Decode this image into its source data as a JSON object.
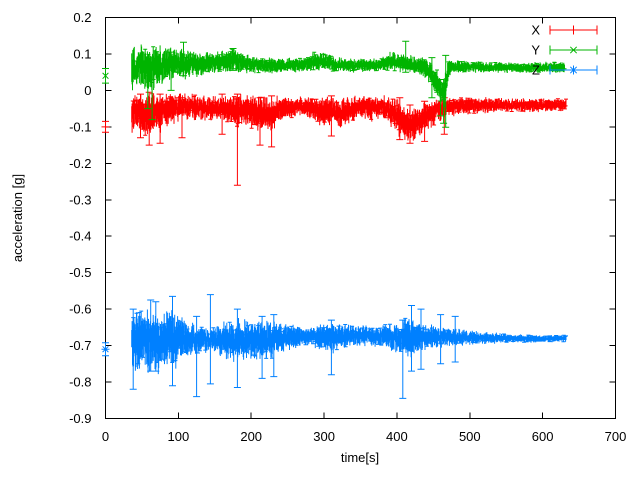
{
  "chart_data": {
    "type": "line",
    "subtype": "errorbars-noisy-traces",
    "title": "",
    "xlabel": "time[s]",
    "ylabel": "acceleration [g]",
    "xlim": [
      0,
      700
    ],
    "ylim": [
      -0.9,
      0.2
    ],
    "x_tick_labels": [
      "0",
      "100",
      "200",
      "300",
      "400",
      "500",
      "600",
      "700"
    ],
    "y_tick_labels": [
      "0.2",
      "0.1",
      "0",
      "-0.1",
      "-0.2",
      "-0.3",
      "-0.4",
      "-0.5",
      "-0.6",
      "-0.7",
      "-0.8",
      "-0.9"
    ],
    "grid": false,
    "legend_position": "top-right-inside",
    "axis_color": "#000000",
    "text_color": "#000000",
    "background_color": "#ffffff",
    "series": [
      {
        "name": "X",
        "color": "#ff0000",
        "marker": "plus",
        "t_range": [
          36,
          632
        ],
        "start_point": {
          "t": 0,
          "value": -0.1,
          "err": 0.015
        },
        "band_keypoints": [
          [
            36,
            -0.065,
            0.045
          ],
          [
            45,
            -0.055,
            0.045
          ],
          [
            60,
            -0.07,
            0.05
          ],
          [
            75,
            -0.06,
            0.045
          ],
          [
            90,
            -0.05,
            0.035
          ],
          [
            110,
            -0.045,
            0.03
          ],
          [
            140,
            -0.05,
            0.028
          ],
          [
            170,
            -0.05,
            0.03
          ],
          [
            181,
            -0.055,
            0.04
          ],
          [
            195,
            -0.055,
            0.035
          ],
          [
            210,
            -0.065,
            0.04
          ],
          [
            228,
            -0.065,
            0.04
          ],
          [
            240,
            -0.05,
            0.028
          ],
          [
            265,
            -0.042,
            0.02
          ],
          [
            285,
            -0.05,
            0.025
          ],
          [
            300,
            -0.06,
            0.035
          ],
          [
            312,
            -0.05,
            0.03
          ],
          [
            322,
            -0.065,
            0.035
          ],
          [
            335,
            -0.055,
            0.03
          ],
          [
            350,
            -0.045,
            0.025
          ],
          [
            365,
            -0.05,
            0.028
          ],
          [
            380,
            -0.045,
            0.025
          ],
          [
            395,
            -0.06,
            0.035
          ],
          [
            405,
            -0.08,
            0.04
          ],
          [
            418,
            -0.1,
            0.038
          ],
          [
            428,
            -0.085,
            0.035
          ],
          [
            438,
            -0.07,
            0.035
          ],
          [
            450,
            -0.06,
            0.03
          ],
          [
            462,
            -0.05,
            0.025
          ],
          [
            475,
            -0.045,
            0.02
          ],
          [
            500,
            -0.042,
            0.018
          ],
          [
            550,
            -0.04,
            0.016
          ],
          [
            600,
            -0.04,
            0.015
          ],
          [
            632,
            -0.04,
            0.014
          ]
        ],
        "error_spikes": [
          [
            48,
            -0.13,
            -0.01
          ],
          [
            60,
            -0.15,
            -0.005
          ],
          [
            75,
            -0.145,
            -0.01
          ],
          [
            105,
            -0.13,
            -0.02
          ],
          [
            160,
            -0.12,
            -0.01
          ],
          [
            181,
            -0.26,
            -0.01
          ],
          [
            212,
            -0.15,
            -0.02
          ],
          [
            228,
            -0.155,
            -0.015
          ],
          [
            310,
            -0.125,
            -0.015
          ],
          [
            404,
            -0.135,
            -0.02
          ],
          [
            418,
            -0.145,
            -0.04
          ],
          [
            438,
            -0.14,
            -0.03
          ],
          [
            465,
            -0.12,
            -0.02
          ]
        ]
      },
      {
        "name": "Y",
        "color": "#00b400",
        "marker": "cross",
        "t_range": [
          36,
          630
        ],
        "start_point": {
          "t": 0,
          "value": 0.04,
          "err": 0.02
        },
        "band_keypoints": [
          [
            36,
            0.06,
            0.05
          ],
          [
            45,
            0.065,
            0.05
          ],
          [
            55,
            0.06,
            0.055
          ],
          [
            65,
            0.06,
            0.05
          ],
          [
            80,
            0.07,
            0.04
          ],
          [
            95,
            0.075,
            0.035
          ],
          [
            107,
            0.07,
            0.035
          ],
          [
            120,
            0.072,
            0.028
          ],
          [
            140,
            0.075,
            0.025
          ],
          [
            160,
            0.08,
            0.025
          ],
          [
            175,
            0.082,
            0.027
          ],
          [
            190,
            0.075,
            0.022
          ],
          [
            210,
            0.07,
            0.018
          ],
          [
            240,
            0.068,
            0.016
          ],
          [
            265,
            0.07,
            0.016
          ],
          [
            285,
            0.078,
            0.02
          ],
          [
            300,
            0.08,
            0.02
          ],
          [
            315,
            0.072,
            0.016
          ],
          [
            340,
            0.068,
            0.015
          ],
          [
            360,
            0.07,
            0.015
          ],
          [
            380,
            0.072,
            0.016
          ],
          [
            392,
            0.08,
            0.022
          ],
          [
            405,
            0.078,
            0.022
          ],
          [
            420,
            0.07,
            0.02
          ],
          [
            435,
            0.065,
            0.022
          ],
          [
            445,
            0.05,
            0.025
          ],
          [
            455,
            0.02,
            0.03
          ],
          [
            461,
            -0.005,
            0.025
          ],
          [
            466,
            0.0,
            0.04
          ],
          [
            470,
            0.05,
            0.03
          ],
          [
            475,
            0.065,
            0.015
          ],
          [
            500,
            0.064,
            0.013
          ],
          [
            550,
            0.063,
            0.012
          ],
          [
            600,
            0.063,
            0.012
          ],
          [
            630,
            0.063,
            0.012
          ]
        ],
        "error_spikes": [
          [
            58,
            -0.05,
            0.04
          ],
          [
            64,
            -0.08,
            0.03
          ],
          [
            90,
            0.0,
            0.105
          ],
          [
            107,
            0.04,
            0.132
          ],
          [
            175,
            0.055,
            0.115
          ],
          [
            412,
            0.05,
            0.135
          ],
          [
            448,
            -0.02,
            0.09
          ],
          [
            460,
            -0.07,
            0.03
          ],
          [
            464,
            -0.09,
            0.02
          ],
          [
            467,
            -0.101,
            0.096
          ]
        ]
      },
      {
        "name": "Z",
        "color": "#0080ff",
        "marker": "star",
        "t_range": [
          36,
          632
        ],
        "start_point": {
          "t": 0,
          "value": -0.71,
          "err": 0.018
        },
        "band_keypoints": [
          [
            36,
            -0.69,
            0.075
          ],
          [
            50,
            -0.685,
            0.07
          ],
          [
            65,
            -0.685,
            0.072
          ],
          [
            80,
            -0.685,
            0.068
          ],
          [
            95,
            -0.685,
            0.065
          ],
          [
            105,
            -0.683,
            0.05
          ],
          [
            115,
            -0.68,
            0.038
          ],
          [
            130,
            -0.682,
            0.032
          ],
          [
            150,
            -0.683,
            0.03
          ],
          [
            165,
            -0.685,
            0.042
          ],
          [
            180,
            -0.687,
            0.05
          ],
          [
            195,
            -0.685,
            0.048
          ],
          [
            210,
            -0.683,
            0.045
          ],
          [
            225,
            -0.684,
            0.042
          ],
          [
            240,
            -0.68,
            0.035
          ],
          [
            260,
            -0.676,
            0.025
          ],
          [
            280,
            -0.675,
            0.022
          ],
          [
            300,
            -0.676,
            0.03
          ],
          [
            312,
            -0.678,
            0.035
          ],
          [
            325,
            -0.675,
            0.027
          ],
          [
            340,
            -0.675,
            0.025
          ],
          [
            360,
            -0.673,
            0.022
          ],
          [
            375,
            -0.675,
            0.025
          ],
          [
            390,
            -0.676,
            0.03
          ],
          [
            405,
            -0.678,
            0.035
          ],
          [
            418,
            -0.68,
            0.048
          ],
          [
            428,
            -0.678,
            0.035
          ],
          [
            440,
            -0.676,
            0.028
          ],
          [
            455,
            -0.676,
            0.025
          ],
          [
            470,
            -0.677,
            0.022
          ],
          [
            485,
            -0.678,
            0.02
          ],
          [
            500,
            -0.679,
            0.016
          ],
          [
            520,
            -0.68,
            0.013
          ],
          [
            545,
            -0.68,
            0.011
          ],
          [
            570,
            -0.681,
            0.009
          ],
          [
            600,
            -0.681,
            0.008
          ],
          [
            632,
            -0.681,
            0.007
          ]
        ],
        "error_spikes": [
          [
            38,
            -0.82,
            -0.6
          ],
          [
            62,
            -0.77,
            -0.575
          ],
          [
            69,
            -0.77,
            -0.58
          ],
          [
            92,
            -0.81,
            -0.565
          ],
          [
            125,
            -0.84,
            -0.62
          ],
          [
            144,
            -0.805,
            -0.56
          ],
          [
            181,
            -0.815,
            -0.6
          ],
          [
            215,
            -0.79,
            -0.62
          ],
          [
            231,
            -0.785,
            -0.615
          ],
          [
            310,
            -0.78,
            -0.63
          ],
          [
            408,
            -0.845,
            -0.63
          ],
          [
            420,
            -0.77,
            -0.59
          ],
          [
            433,
            -0.765,
            -0.6
          ],
          [
            460,
            -0.75,
            -0.615
          ],
          [
            480,
            -0.745,
            -0.62
          ]
        ]
      }
    ]
  }
}
